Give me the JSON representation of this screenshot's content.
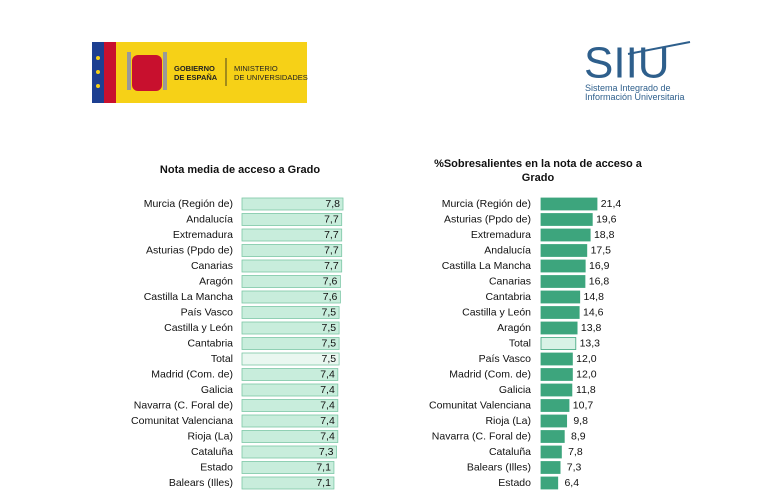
{
  "header": {
    "gov_lines": [
      "GOBIERNO",
      "DE ESPAÑA"
    ],
    "ministry_lines": [
      "MINISTERIO",
      "DE UNIVERSIDADES"
    ],
    "logo_text": "SIIU",
    "logo_lines": [
      "Sistema Integrado de",
      "Información Universitaria"
    ]
  },
  "chart_data": [
    {
      "type": "barh",
      "title": "Nota media de acceso a Grado",
      "categories": [
        "Murcia (Región de)",
        "Andalucía",
        "Extremadura",
        "Asturias (Ppdo de)",
        "Canarias",
        "Aragón",
        "Castilla  La Mancha",
        "País Vasco",
        "Castilla y León",
        "Cantabria",
        "Total",
        "Madrid (Com. de)",
        "Galicia",
        "Navarra (C. Foral de)",
        "Comunitat Valenciana",
        "Rioja (La)",
        "Cataluña",
        "Estado",
        "Balears (Illes)"
      ],
      "values": [
        7.8,
        7.7,
        7.7,
        7.7,
        7.7,
        7.6,
        7.6,
        7.5,
        7.5,
        7.5,
        7.5,
        7.4,
        7.4,
        7.4,
        7.4,
        7.4,
        7.3,
        7.1,
        7.1
      ],
      "value_labels": [
        "7,8",
        "7,7",
        "7,7",
        "7,7",
        "7,7",
        "7,6",
        "7,6",
        "7,5",
        "7,5",
        "7,5",
        "7,5",
        "7,4",
        "7,4",
        "7,4",
        "7,4",
        "7,4",
        "7,3",
        "7,1",
        "7,1"
      ],
      "colors": [
        "#c8eddc",
        "#c8eddc",
        "#c8eddc",
        "#c8eddc",
        "#c8eddc",
        "#c8eddc",
        "#c8eddc",
        "#c8eddc",
        "#c8eddc",
        "#c8eddc",
        "#e9f7f0",
        "#c8eddc",
        "#c8eddc",
        "#c8eddc",
        "#c8eddc",
        "#c8eddc",
        "#c8eddc",
        "#c8eddc",
        "#c8eddc"
      ],
      "edge_color": "#7cc7a6"
    },
    {
      "type": "barh",
      "title": "%Sobresalientes en la nota de acceso a Grado",
      "categories": [
        "Murcia (Región de)",
        "Asturias (Ppdo de)",
        "Extremadura",
        "Andalucía",
        "Castilla  La Mancha",
        "Canarias",
        "Cantabria",
        "Castilla y León",
        "Aragón",
        "Total",
        "País Vasco",
        "Madrid (Com. de)",
        "Galicia",
        "Comunitat Valenciana",
        "Rioja (La)",
        "Navarra (C. Foral de)",
        "Cataluña",
        "Balears (Illes)",
        "Estado"
      ],
      "values": [
        21.4,
        19.6,
        18.8,
        17.5,
        16.9,
        16.8,
        14.8,
        14.6,
        13.8,
        13.3,
        12.0,
        12.0,
        11.8,
        10.7,
        9.8,
        8.9,
        7.8,
        7.3,
        6.4
      ],
      "value_labels": [
        "21,4",
        "19,6",
        "18,8",
        "17,5",
        "16,9",
        "16,8",
        "14,8",
        "14,6",
        "13,8",
        "13,3",
        "12,0",
        "12,0",
        "11,8",
        "10,7",
        "9,8",
        "8,9",
        "7,8",
        "7,3",
        "6,4"
      ],
      "colors": [
        "#3da57d",
        "#3da57d",
        "#3da57d",
        "#3da57d",
        "#3da57d",
        "#3da57d",
        "#3da57d",
        "#3da57d",
        "#3da57d",
        "#d8f2e6",
        "#3da57d",
        "#3da57d",
        "#3da57d",
        "#3da57d",
        "#3da57d",
        "#3da57d",
        "#3da57d",
        "#3da57d",
        "#3da57d"
      ],
      "edge_color": "#3da57d"
    }
  ]
}
